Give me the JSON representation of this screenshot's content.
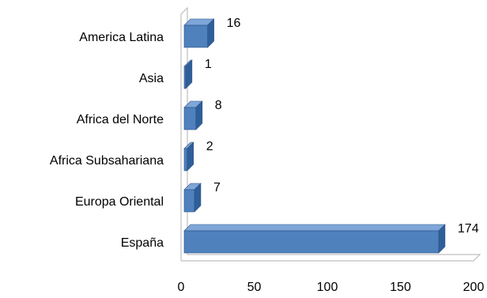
{
  "chart_data": {
    "type": "bar",
    "orientation": "horizontal",
    "three_d": true,
    "categories": [
      "America Latina",
      "Asia",
      "Africa del Norte",
      "Africa Subsahariana",
      "Europa Oriental",
      "España"
    ],
    "values": [
      16,
      1,
      8,
      2,
      7,
      174
    ],
    "value_labels": [
      "16",
      "1",
      "8",
      "2",
      "7",
      "174"
    ],
    "xlim": [
      0,
      200
    ],
    "x_ticks": [
      "0",
      "50",
      "100",
      "150",
      "200"
    ],
    "x_tick_values": [
      0,
      50,
      100,
      150,
      200
    ],
    "grid": false,
    "legend": "none",
    "colors": {
      "bar_front": "#4f81bd",
      "bar_top": "#7ea6d8",
      "bar_side": "#2f5f99",
      "frame": "#bfbfbf"
    }
  }
}
